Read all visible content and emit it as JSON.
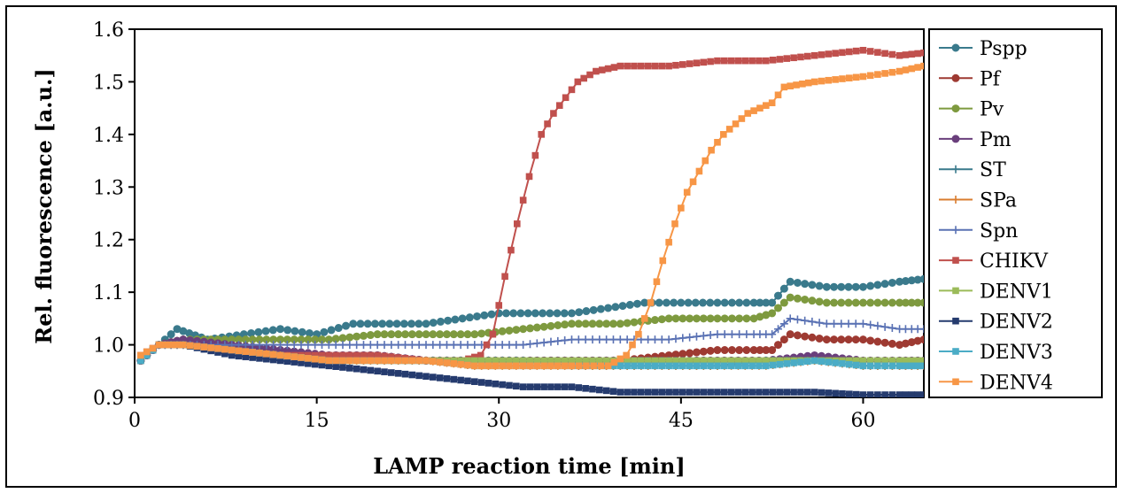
{
  "chart_data": {
    "type": "line",
    "title": "",
    "xlabel": "LAMP  reaction time [min]",
    "ylabel": "Rel. fluorescence  [a.u.]",
    "xlim": [
      0,
      65
    ],
    "ylim": [
      0.9,
      1.6
    ],
    "xticks": [
      0,
      15,
      30,
      45,
      60
    ],
    "yticks": [
      0.9,
      1.0,
      1.1,
      1.2,
      1.3,
      1.4,
      1.5,
      1.6
    ],
    "ytick_labels": [
      "0.9",
      "1.0",
      "1.1",
      "1.2",
      "1.3",
      "1.4",
      "1.5",
      "1.6"
    ],
    "grid": false,
    "legend": "right",
    "series": [
      {
        "name": "Pspp",
        "color": "#3a7a8c",
        "marker": "circle",
        "points": [
          [
            0.5,
            0.97
          ],
          [
            2,
            1.0
          ],
          [
            3.5,
            1.03
          ],
          [
            6,
            1.01
          ],
          [
            9,
            1.02
          ],
          [
            12,
            1.03
          ],
          [
            15,
            1.02
          ],
          [
            18,
            1.04
          ],
          [
            21,
            1.04
          ],
          [
            24,
            1.04
          ],
          [
            27,
            1.05
          ],
          [
            30,
            1.06
          ],
          [
            33,
            1.06
          ],
          [
            36,
            1.06
          ],
          [
            39,
            1.07
          ],
          [
            42,
            1.08
          ],
          [
            45,
            1.08
          ],
          [
            48,
            1.08
          ],
          [
            51,
            1.08
          ],
          [
            52.5,
            1.08
          ],
          [
            54,
            1.12
          ],
          [
            57,
            1.11
          ],
          [
            60,
            1.11
          ],
          [
            63,
            1.12
          ],
          [
            65,
            1.125
          ]
        ]
      },
      {
        "name": "Pf",
        "color": "#9e3a32",
        "marker": "circle",
        "points": [
          [
            0.5,
            0.97
          ],
          [
            2,
            1.0
          ],
          [
            4,
            1.01
          ],
          [
            8,
            1.0
          ],
          [
            12,
            0.99
          ],
          [
            16,
            0.98
          ],
          [
            20,
            0.98
          ],
          [
            24,
            0.97
          ],
          [
            28,
            0.97
          ],
          [
            32,
            0.97
          ],
          [
            36,
            0.97
          ],
          [
            40,
            0.97
          ],
          [
            44,
            0.98
          ],
          [
            48,
            0.99
          ],
          [
            51,
            0.99
          ],
          [
            52.5,
            0.99
          ],
          [
            54,
            1.02
          ],
          [
            57,
            1.01
          ],
          [
            60,
            1.01
          ],
          [
            63,
            1.0
          ],
          [
            65,
            1.01
          ]
        ]
      },
      {
        "name": "Pv",
        "color": "#7e9a3f",
        "marker": "circle",
        "points": [
          [
            0.5,
            0.97
          ],
          [
            2,
            1.0
          ],
          [
            4,
            1.01
          ],
          [
            8,
            1.01
          ],
          [
            12,
            1.01
          ],
          [
            16,
            1.01
          ],
          [
            20,
            1.02
          ],
          [
            24,
            1.02
          ],
          [
            28,
            1.02
          ],
          [
            32,
            1.03
          ],
          [
            36,
            1.04
          ],
          [
            40,
            1.04
          ],
          [
            44,
            1.05
          ],
          [
            48,
            1.05
          ],
          [
            51,
            1.05
          ],
          [
            52.5,
            1.06
          ],
          [
            54,
            1.09
          ],
          [
            57,
            1.08
          ],
          [
            60,
            1.08
          ],
          [
            63,
            1.08
          ],
          [
            65,
            1.08
          ]
        ]
      },
      {
        "name": "Pm",
        "color": "#6a3f7c",
        "marker": "circle",
        "points": [
          [
            0.5,
            0.97
          ],
          [
            2,
            1.0
          ],
          [
            4,
            1.01
          ],
          [
            8,
            1.0
          ],
          [
            12,
            0.99
          ],
          [
            16,
            0.98
          ],
          [
            20,
            0.98
          ],
          [
            24,
            0.97
          ],
          [
            28,
            0.97
          ],
          [
            32,
            0.97
          ],
          [
            36,
            0.97
          ],
          [
            40,
            0.97
          ],
          [
            44,
            0.97
          ],
          [
            48,
            0.97
          ],
          [
            52,
            0.97
          ],
          [
            56,
            0.98
          ],
          [
            60,
            0.97
          ],
          [
            63,
            0.97
          ],
          [
            65,
            0.97
          ]
        ]
      },
      {
        "name": "ST",
        "color": "#3a7a8c",
        "marker": "plus",
        "points": [
          [
            0.5,
            0.97
          ],
          [
            2,
            1.0
          ],
          [
            4,
            1.0
          ],
          [
            8,
            0.99
          ],
          [
            12,
            0.98
          ],
          [
            16,
            0.97
          ],
          [
            20,
            0.97
          ],
          [
            24,
            0.97
          ],
          [
            28,
            0.97
          ],
          [
            32,
            0.97
          ],
          [
            36,
            0.96
          ],
          [
            40,
            0.96
          ],
          [
            44,
            0.96
          ],
          [
            48,
            0.96
          ],
          [
            52,
            0.97
          ],
          [
            56,
            0.97
          ],
          [
            60,
            0.96
          ],
          [
            63,
            0.96
          ],
          [
            65,
            0.96
          ]
        ]
      },
      {
        "name": "SPa",
        "color": "#d97c2f",
        "marker": "plus",
        "points": [
          [
            0.5,
            0.97
          ],
          [
            2,
            1.0
          ],
          [
            4,
            1.0
          ],
          [
            8,
            0.99
          ],
          [
            12,
            0.98
          ],
          [
            16,
            0.97
          ],
          [
            20,
            0.97
          ],
          [
            24,
            0.97
          ],
          [
            28,
            0.96
          ],
          [
            32,
            0.96
          ],
          [
            36,
            0.96
          ],
          [
            40,
            0.96
          ],
          [
            44,
            0.96
          ],
          [
            48,
            0.96
          ],
          [
            52,
            0.96
          ],
          [
            56,
            0.97
          ],
          [
            60,
            0.96
          ],
          [
            63,
            0.96
          ],
          [
            65,
            0.96
          ]
        ]
      },
      {
        "name": "Spn",
        "color": "#5a72b4",
        "marker": "plus",
        "points": [
          [
            0.5,
            0.97
          ],
          [
            2,
            1.0
          ],
          [
            4,
            1.0
          ],
          [
            8,
            1.0
          ],
          [
            12,
            1.0
          ],
          [
            16,
            1.0
          ],
          [
            20,
            1.0
          ],
          [
            24,
            1.0
          ],
          [
            28,
            1.0
          ],
          [
            32,
            1.0
          ],
          [
            36,
            1.01
          ],
          [
            40,
            1.01
          ],
          [
            44,
            1.01
          ],
          [
            48,
            1.02
          ],
          [
            51,
            1.02
          ],
          [
            52.5,
            1.02
          ],
          [
            54,
            1.05
          ],
          [
            57,
            1.04
          ],
          [
            60,
            1.04
          ],
          [
            63,
            1.03
          ],
          [
            65,
            1.03
          ]
        ]
      },
      {
        "name": "CHIKV",
        "color": "#c0504d",
        "marker": "square",
        "points": [
          [
            0.5,
            0.98
          ],
          [
            2,
            1.0
          ],
          [
            4,
            1.0
          ],
          [
            8,
            0.99
          ],
          [
            12,
            0.98
          ],
          [
            16,
            0.98
          ],
          [
            20,
            0.98
          ],
          [
            24,
            0.97
          ],
          [
            27,
            0.97
          ],
          [
            28.5,
            0.98
          ],
          [
            29.5,
            1.02
          ],
          [
            30.5,
            1.13
          ],
          [
            31.5,
            1.23
          ],
          [
            32.5,
            1.32
          ],
          [
            33.5,
            1.4
          ],
          [
            34.5,
            1.44
          ],
          [
            35.5,
            1.47
          ],
          [
            36.5,
            1.5
          ],
          [
            38,
            1.52
          ],
          [
            40,
            1.53
          ],
          [
            44,
            1.53
          ],
          [
            48,
            1.54
          ],
          [
            52,
            1.54
          ],
          [
            56,
            1.55
          ],
          [
            60,
            1.56
          ],
          [
            63,
            1.55
          ],
          [
            65,
            1.555
          ]
        ]
      },
      {
        "name": "DENV1",
        "color": "#9bbb59",
        "marker": "square",
        "points": [
          [
            0.5,
            0.97
          ],
          [
            2,
            1.0
          ],
          [
            4,
            1.0
          ],
          [
            8,
            0.99
          ],
          [
            12,
            0.98
          ],
          [
            16,
            0.97
          ],
          [
            20,
            0.97
          ],
          [
            24,
            0.97
          ],
          [
            28,
            0.97
          ],
          [
            32,
            0.97
          ],
          [
            36,
            0.97
          ],
          [
            40,
            0.97
          ],
          [
            44,
            0.97
          ],
          [
            48,
            0.97
          ],
          [
            52,
            0.97
          ],
          [
            56,
            0.97
          ],
          [
            60,
            0.97
          ],
          [
            63,
            0.97
          ],
          [
            65,
            0.97
          ]
        ]
      },
      {
        "name": "DENV2",
        "color": "#253b6e",
        "marker": "square",
        "points": [
          [
            0.5,
            0.97
          ],
          [
            2,
            1.0
          ],
          [
            4,
            1.0
          ],
          [
            8,
            0.98
          ],
          [
            12,
            0.97
          ],
          [
            16,
            0.96
          ],
          [
            20,
            0.95
          ],
          [
            24,
            0.94
          ],
          [
            28,
            0.93
          ],
          [
            32,
            0.92
          ],
          [
            36,
            0.92
          ],
          [
            40,
            0.91
          ],
          [
            44,
            0.91
          ],
          [
            48,
            0.91
          ],
          [
            52,
            0.91
          ],
          [
            56,
            0.91
          ],
          [
            60,
            0.905
          ],
          [
            63,
            0.905
          ],
          [
            65,
            0.905
          ]
        ]
      },
      {
        "name": "DENV3",
        "color": "#4bacc6",
        "marker": "square",
        "points": [
          [
            0.5,
            0.97
          ],
          [
            2,
            1.0
          ],
          [
            4,
            1.0
          ],
          [
            8,
            0.99
          ],
          [
            12,
            0.98
          ],
          [
            16,
            0.97
          ],
          [
            20,
            0.97
          ],
          [
            24,
            0.97
          ],
          [
            28,
            0.96
          ],
          [
            32,
            0.96
          ],
          [
            36,
            0.96
          ],
          [
            40,
            0.96
          ],
          [
            44,
            0.96
          ],
          [
            48,
            0.96
          ],
          [
            52,
            0.96
          ],
          [
            56,
            0.97
          ],
          [
            60,
            0.96
          ],
          [
            63,
            0.96
          ],
          [
            65,
            0.96
          ]
        ]
      },
      {
        "name": "DENV4",
        "color": "#f79646",
        "marker": "square",
        "points": [
          [
            0.5,
            0.98
          ],
          [
            2,
            1.0
          ],
          [
            4,
            1.0
          ],
          [
            8,
            0.99
          ],
          [
            12,
            0.98
          ],
          [
            16,
            0.97
          ],
          [
            20,
            0.97
          ],
          [
            24,
            0.97
          ],
          [
            28,
            0.96
          ],
          [
            32,
            0.96
          ],
          [
            36,
            0.96
          ],
          [
            39,
            0.96
          ],
          [
            40.5,
            0.98
          ],
          [
            41.5,
            1.02
          ],
          [
            42.5,
            1.08
          ],
          [
            43.5,
            1.16
          ],
          [
            44.5,
            1.23
          ],
          [
            45.5,
            1.29
          ],
          [
            46.5,
            1.33
          ],
          [
            47.5,
            1.37
          ],
          [
            48.5,
            1.4
          ],
          [
            49.5,
            1.42
          ],
          [
            50.5,
            1.44
          ],
          [
            51.5,
            1.45
          ],
          [
            52.5,
            1.46
          ],
          [
            53.5,
            1.49
          ],
          [
            56,
            1.5
          ],
          [
            60,
            1.51
          ],
          [
            63,
            1.52
          ],
          [
            65,
            1.53
          ]
        ]
      }
    ]
  }
}
